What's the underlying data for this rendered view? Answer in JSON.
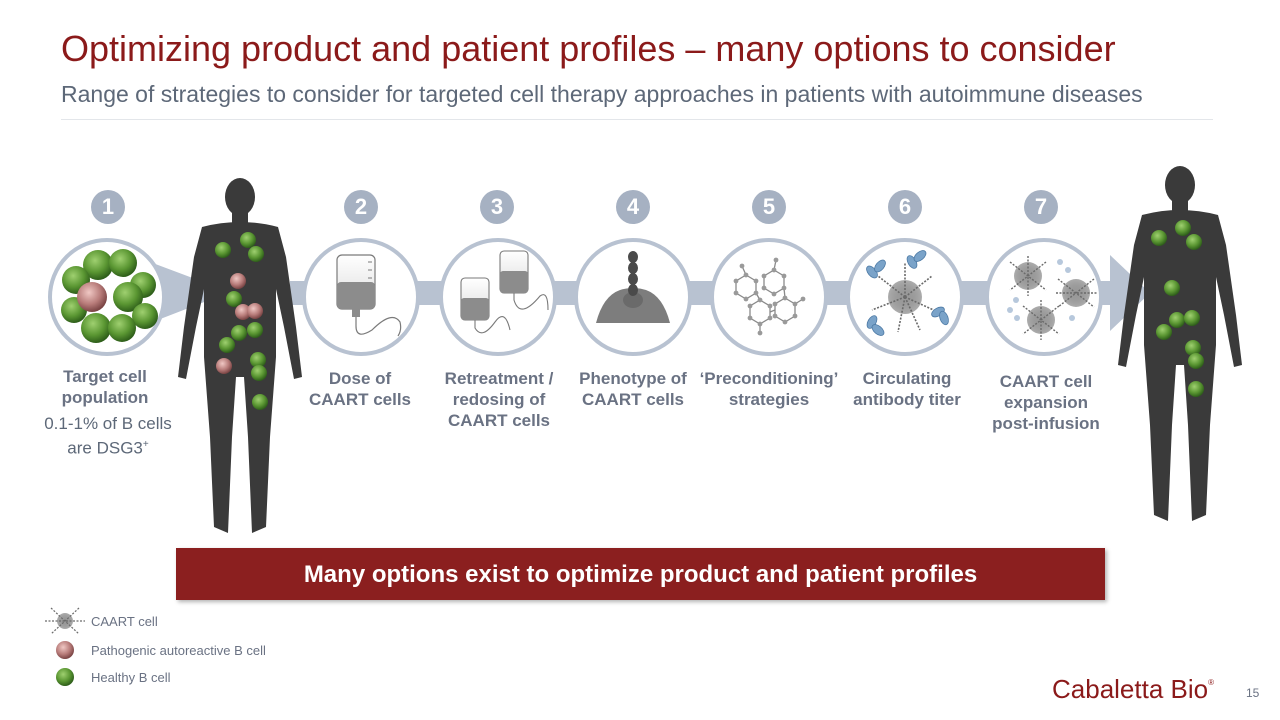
{
  "header": {
    "title": "Optimizing product and patient profiles – many options to consider",
    "subtitle": "Range of strategies to consider for targeted cell therapy approaches in patients with autoimmune diseases"
  },
  "steps": [
    {
      "number": "1",
      "label": "Target cell population",
      "detail_line1": "0.1-1% of B cells",
      "detail_line2": "are DSG3",
      "detail_sup": "+"
    },
    {
      "number": "2",
      "label": "Dose of CAART cells"
    },
    {
      "number": "3",
      "label": "Retreatment / redosing of CAART cells"
    },
    {
      "number": "4",
      "label": "Phenotype of CAART cells"
    },
    {
      "number": "5",
      "label": "‘Preconditioning’ strategies"
    },
    {
      "number": "6",
      "label": "Circulating antibody titer"
    },
    {
      "number": "7",
      "label": "CAART cell expansion post-infusion"
    }
  ],
  "banner": {
    "text": "Many options exist to optimize product and patient profiles"
  },
  "legend": [
    {
      "label": "CAART cell",
      "icon": "caart-cell-icon"
    },
    {
      "label": "Pathogenic autoreactive B cell",
      "icon": "pathogenic-b-cell-icon"
    },
    {
      "label": "Healthy B cell",
      "icon": "healthy-b-cell-icon"
    }
  ],
  "footer": {
    "logo": "Cabaletta Bio",
    "page_number": "15"
  },
  "colors": {
    "title": "#8b1a1a",
    "banner": "#8b1f1f",
    "arrow": "#b8c2d1",
    "number_badge": "#a6b1c2",
    "healthy_cell": "#4f8a2e",
    "pathogenic_cell": "#b07878",
    "silhouette": "#3a3a3a"
  }
}
